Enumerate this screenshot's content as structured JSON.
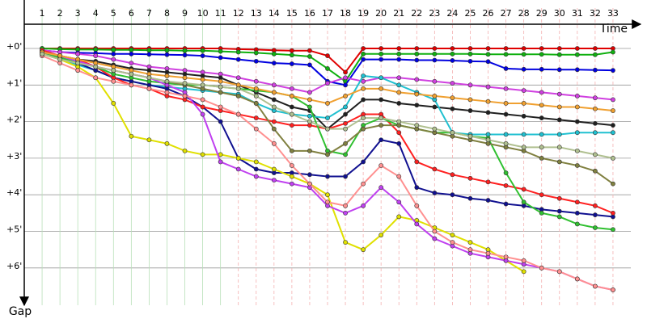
{
  "chart_data": {
    "type": "line",
    "x_label": "Time",
    "y_label": "Gap",
    "x": [
      1,
      2,
      3,
      4,
      5,
      6,
      7,
      8,
      9,
      10,
      11,
      12,
      13,
      14,
      15,
      16,
      17,
      18,
      19,
      20,
      21,
      22,
      23,
      24,
      25,
      26,
      27,
      28,
      29,
      30,
      31,
      32,
      33
    ],
    "xlim": [
      0,
      34
    ],
    "xticks": [
      1,
      2,
      3,
      4,
      5,
      6,
      7,
      8,
      9,
      10,
      11,
      12,
      13,
      14,
      15,
      16,
      17,
      18,
      19,
      20,
      21,
      22,
      23,
      24,
      25,
      26,
      27,
      28,
      29,
      30,
      31,
      32,
      33
    ],
    "ylim": [
      0,
      6.6
    ],
    "y_inverted": true,
    "grid": true,
    "yticks": [
      {
        "value": 0,
        "label": "+0'"
      },
      {
        "value": 1,
        "label": "+1'"
      },
      {
        "value": 2,
        "label": "+2'"
      },
      {
        "value": 3,
        "label": "+3'"
      },
      {
        "value": 4,
        "label": "+4'"
      },
      {
        "value": 5,
        "label": "+5'"
      },
      {
        "value": 6,
        "label": "+6'"
      }
    ],
    "series": [
      {
        "color": "#e00000",
        "values": [
          0,
          0,
          0,
          0,
          0,
          0,
          0,
          0,
          0,
          0,
          0,
          0.02,
          0.03,
          0.05,
          0.06,
          0.06,
          0.2,
          0.65,
          0,
          0,
          0,
          0,
          0,
          0,
          0,
          0,
          0,
          0,
          0,
          0,
          0,
          0,
          0
        ]
      },
      {
        "color": "#10b010",
        "values": [
          0,
          0.02,
          0.03,
          0.03,
          0.04,
          0.04,
          0.05,
          0.05,
          0.06,
          0.06,
          0.08,
          0.1,
          0.12,
          0.15,
          0.18,
          0.22,
          0.55,
          0.9,
          0.15,
          0.15,
          0.15,
          0.15,
          0.15,
          0.15,
          0.15,
          0.16,
          0.16,
          0.16,
          0.16,
          0.17,
          0.17,
          0.17,
          0.1
        ]
      },
      {
        "color": "#0000e0",
        "values": [
          0.05,
          0.1,
          0.12,
          0.13,
          0.15,
          0.15,
          0.16,
          0.17,
          0.18,
          0.2,
          0.25,
          0.3,
          0.35,
          0.4,
          0.42,
          0.45,
          0.9,
          1.0,
          0.3,
          0.3,
          0.3,
          0.32,
          0.32,
          0.33,
          0.35,
          0.36,
          0.55,
          0.57,
          0.57,
          0.58,
          0.58,
          0.59,
          0.6
        ]
      },
      {
        "color": "#d040e0",
        "values": [
          0.05,
          0.1,
          0.15,
          0.2,
          0.3,
          0.4,
          0.5,
          0.55,
          0.6,
          0.65,
          0.7,
          0.8,
          0.9,
          1.0,
          1.1,
          1.2,
          0.95,
          0.8,
          0.9,
          0.8,
          0.8,
          0.85,
          0.9,
          0.95,
          1.0,
          1.05,
          1.1,
          1.15,
          1.2,
          1.25,
          1.3,
          1.35,
          1.4
        ]
      },
      {
        "color": "#202020",
        "values": [
          0.1,
          0.2,
          0.3,
          0.35,
          0.45,
          0.55,
          0.6,
          0.65,
          0.7,
          0.75,
          0.8,
          1.0,
          1.2,
          1.4,
          1.6,
          1.7,
          2.2,
          1.8,
          1.4,
          1.4,
          1.5,
          1.55,
          1.6,
          1.65,
          1.7,
          1.75,
          1.8,
          1.85,
          1.9,
          1.95,
          2.0,
          2.05,
          2.1
        ]
      },
      {
        "color": "#20c0d0",
        "values": [
          0.15,
          0.3,
          0.45,
          0.6,
          0.8,
          0.9,
          1.0,
          1.05,
          1.1,
          1.15,
          1.2,
          1.25,
          1.5,
          1.7,
          1.8,
          1.85,
          1.9,
          1.6,
          0.75,
          0.8,
          1.0,
          1.2,
          1.4,
          2.3,
          2.35,
          2.35,
          2.35,
          2.35,
          2.35,
          2.35,
          2.3,
          2.3,
          2.3
        ]
      },
      {
        "color": "#101090",
        "values": [
          0.1,
          0.25,
          0.4,
          0.6,
          0.8,
          0.9,
          1.0,
          1.1,
          1.3,
          1.6,
          2.0,
          3.0,
          3.3,
          3.4,
          3.4,
          3.45,
          3.5,
          3.5,
          3.1,
          2.5,
          2.6,
          3.8,
          3.95,
          4.0,
          4.1,
          4.15,
          4.25,
          4.3,
          4.4,
          4.45,
          4.5,
          4.55,
          4.6
        ]
      },
      {
        "color": "#ff2020",
        "values": [
          0.05,
          0.2,
          0.3,
          0.5,
          0.8,
          1.0,
          1.1,
          1.3,
          1.4,
          1.6,
          1.7,
          1.8,
          1.9,
          2.0,
          2.1,
          2.1,
          2.2,
          2.05,
          1.8,
          1.8,
          2.3,
          3.1,
          3.3,
          3.45,
          3.55,
          3.65,
          3.75,
          3.85,
          4.0,
          4.1,
          4.2,
          4.3,
          4.5
        ]
      },
      {
        "color": "#30c030",
        "values": [
          0.1,
          0.25,
          0.4,
          0.5,
          0.7,
          0.8,
          0.9,
          0.95,
          1.0,
          1.0,
          1.05,
          1.1,
          1.15,
          1.2,
          1.3,
          1.6,
          2.8,
          2.9,
          2.1,
          1.9,
          2.1,
          2.2,
          2.3,
          2.3,
          2.4,
          2.45,
          3.4,
          4.2,
          4.5,
          4.6,
          4.8,
          4.9,
          4.95
        ]
      },
      {
        "color": "#808040",
        "values": [
          0.1,
          0.2,
          0.35,
          0.5,
          0.6,
          0.7,
          0.8,
          0.9,
          1.0,
          1.1,
          1.2,
          1.3,
          1.5,
          2.2,
          2.8,
          2.8,
          2.9,
          2.6,
          2.2,
          2.1,
          2.1,
          2.2,
          2.3,
          2.4,
          2.5,
          2.6,
          2.7,
          2.8,
          3.0,
          3.1,
          3.2,
          3.35,
          3.7
        ]
      },
      {
        "color": "#e0e000",
        "values": [
          0.15,
          0.3,
          0.5,
          0.8,
          1.5,
          2.4,
          2.5,
          2.6,
          2.8,
          2.9,
          2.9,
          3.0,
          3.1,
          3.3,
          3.5,
          3.7,
          4.0,
          5.3,
          5.5,
          5.1,
          4.6,
          4.7,
          4.9,
          5.1,
          5.3,
          5.5,
          5.8,
          6.1,
          null,
          null,
          null,
          null,
          null
        ]
      },
      {
        "color": "#c040f0",
        "values": [
          0.1,
          0.2,
          0.35,
          0.5,
          0.6,
          0.7,
          0.8,
          1.0,
          1.2,
          1.8,
          3.1,
          3.3,
          3.5,
          3.6,
          3.7,
          3.8,
          4.3,
          4.5,
          4.3,
          3.8,
          4.2,
          4.8,
          5.2,
          5.4,
          5.6,
          5.7,
          5.8,
          5.9,
          6.0,
          6.1,
          6.3,
          6.5,
          6.6
        ]
      },
      {
        "color": "#ff9090",
        "values": [
          0.2,
          0.4,
          0.6,
          0.8,
          0.9,
          1.0,
          1.1,
          1.2,
          1.3,
          1.4,
          1.6,
          1.8,
          2.2,
          2.6,
          3.2,
          3.7,
          4.2,
          4.3,
          3.7,
          3.2,
          3.5,
          4.3,
          5.0,
          5.3,
          5.5,
          5.6,
          5.7,
          5.8,
          6.0,
          6.1,
          6.3,
          6.5,
          6.6
        ]
      },
      {
        "color": "#f0a030",
        "values": [
          0.1,
          0.2,
          0.3,
          0.4,
          0.5,
          0.6,
          0.7,
          0.75,
          0.8,
          0.85,
          0.9,
          1.0,
          1.1,
          1.2,
          1.3,
          1.4,
          1.5,
          1.3,
          1.1,
          1.1,
          1.2,
          1.25,
          1.3,
          1.35,
          1.4,
          1.45,
          1.5,
          1.5,
          1.55,
          1.6,
          1.6,
          1.65,
          1.7
        ]
      },
      {
        "color": "#b0c090",
        "values": [
          0.15,
          0.3,
          0.4,
          0.5,
          0.6,
          0.7,
          0.8,
          0.9,
          0.95,
          1.0,
          1.05,
          1.1,
          1.3,
          1.6,
          1.8,
          2.0,
          2.2,
          2.2,
          1.9,
          1.9,
          2.0,
          2.1,
          2.2,
          2.3,
          2.4,
          2.5,
          2.6,
          2.7,
          2.7,
          2.7,
          2.8,
          2.9,
          3.0
        ]
      }
    ]
  }
}
